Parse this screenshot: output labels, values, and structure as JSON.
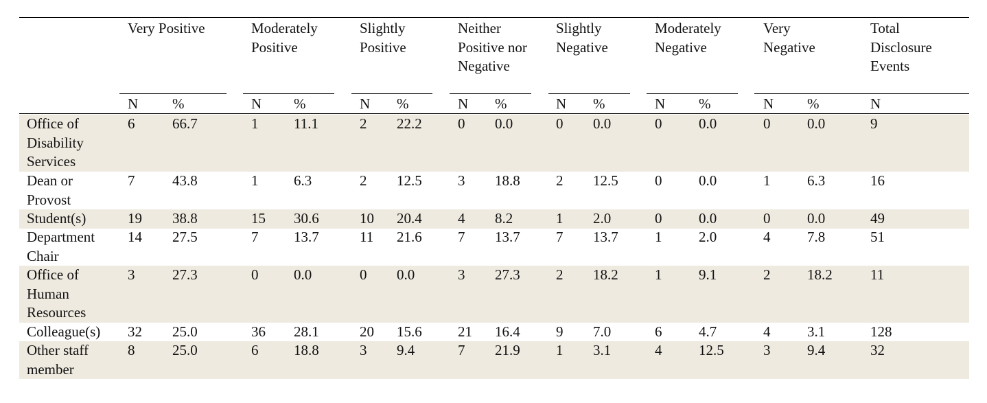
{
  "table": {
    "groups": [
      {
        "label": "Very Positive",
        "sub": [
          "N",
          "%"
        ]
      },
      {
        "label": "Moderately Positive",
        "sub": [
          "N",
          "%"
        ]
      },
      {
        "label": "Slightly Positive",
        "sub": [
          "N",
          "%"
        ]
      },
      {
        "label": "Neither Positive nor Negative",
        "sub": [
          "N",
          "%"
        ]
      },
      {
        "label": "Slightly Negative",
        "sub": [
          "N",
          "%"
        ]
      },
      {
        "label": "Moderately Negative",
        "sub": [
          "N",
          "%"
        ]
      },
      {
        "label": "Very Negative",
        "sub": [
          "N",
          "%"
        ]
      },
      {
        "label": "Total Disclosure Events",
        "sub": [
          "N"
        ]
      }
    ],
    "rows": [
      {
        "label": "Office of Disability Services",
        "values": [
          "6",
          "66.7",
          "1",
          "11.1",
          "2",
          "22.2",
          "0",
          "0.0",
          "0",
          "0.0",
          "0",
          "0.0",
          "0",
          "0.0",
          "9"
        ]
      },
      {
        "label": "Dean or Provost",
        "values": [
          "7",
          "43.8",
          "1",
          "6.3",
          "2",
          "12.5",
          "3",
          "18.8",
          "2",
          "12.5",
          "0",
          "0.0",
          "1",
          "6.3",
          "16"
        ]
      },
      {
        "label": "Student(s)",
        "values": [
          "19",
          "38.8",
          "15",
          "30.6",
          "10",
          "20.4",
          "4",
          "8.2",
          "1",
          "2.0",
          "0",
          "0.0",
          "0",
          "0.0",
          "49"
        ]
      },
      {
        "label": "Department Chair",
        "values": [
          "14",
          "27.5",
          "7",
          "13.7",
          "11",
          "21.6",
          "7",
          "13.7",
          "7",
          "13.7",
          "1",
          "2.0",
          "4",
          "7.8",
          "51"
        ]
      },
      {
        "label": "Office of Human Resources",
        "values": [
          "3",
          "27.3",
          "0",
          "0.0",
          "0",
          "0.0",
          "3",
          "27.3",
          "2",
          "18.2",
          "1",
          "9.1",
          "2",
          "18.2",
          "11"
        ]
      },
      {
        "label": "Colleague(s)",
        "values": [
          "32",
          "25.0",
          "36",
          "28.1",
          "20",
          "15.6",
          "21",
          "16.4",
          "9",
          "7.0",
          "6",
          "4.7",
          "4",
          "3.1",
          "128"
        ]
      },
      {
        "label": "Other staff member",
        "values": [
          "8",
          "25.0",
          "6",
          "18.8",
          "3",
          "9.4",
          "7",
          "21.9",
          "1",
          "3.1",
          "4",
          "12.5",
          "3",
          "9.4",
          "32"
        ]
      }
    ]
  }
}
